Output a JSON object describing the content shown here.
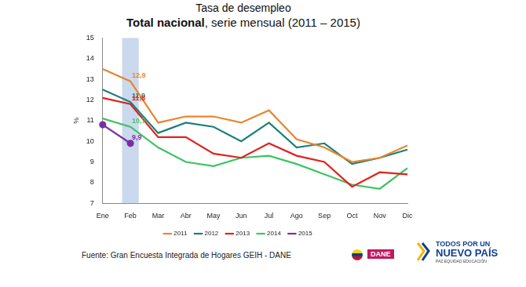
{
  "chart_data": {
    "type": "line",
    "title": "Tasa de desempleo",
    "subtitle": "Total nacional, serie mensual (2011 – 2015)",
    "y_label": "%",
    "categories": [
      "Ene",
      "Feb",
      "Mar",
      "Abr",
      "May",
      "Jun",
      "Jul",
      "Ago",
      "Sep",
      "Oct",
      "Nov",
      "Dic"
    ],
    "series": [
      {
        "name": "2011",
        "color": "#e8862f",
        "marker": "none",
        "line_style": "solid",
        "values": [
          13.5,
          12.9,
          10.9,
          11.2,
          11.2,
          10.9,
          11.5,
          10.1,
          9.7,
          9.0,
          9.2,
          9.8
        ],
        "value_labels": [
          null,
          "12,9",
          null,
          null,
          null,
          null,
          null,
          null,
          null,
          null,
          null,
          null
        ]
      },
      {
        "name": "2012",
        "color": "#1b8077",
        "marker": "none",
        "line_style": "solid",
        "values": [
          12.5,
          11.9,
          10.4,
          10.9,
          10.7,
          10.0,
          10.9,
          9.7,
          9.9,
          8.9,
          9.2,
          9.6
        ],
        "value_labels": [
          null,
          "11,9",
          null,
          null,
          null,
          null,
          null,
          null,
          null,
          null,
          null,
          null
        ]
      },
      {
        "name": "2013",
        "color": "#e3211c",
        "marker": "none",
        "line_style": "solid",
        "values": [
          12.1,
          11.8,
          10.2,
          10.2,
          9.4,
          9.2,
          9.9,
          9.3,
          9.0,
          7.8,
          8.5,
          8.4
        ],
        "value_labels": [
          null,
          "11,8",
          null,
          null,
          null,
          null,
          null,
          null,
          null,
          null,
          null,
          null
        ]
      },
      {
        "name": "2014",
        "color": "#3cc464",
        "marker": "none",
        "line_style": "solid",
        "values": [
          11.1,
          10.7,
          9.7,
          9.0,
          8.8,
          9.2,
          9.3,
          8.9,
          8.4,
          7.9,
          7.7,
          8.7
        ],
        "value_labels": [
          null,
          "10,7",
          null,
          null,
          null,
          null,
          null,
          null,
          null,
          null,
          null,
          null
        ]
      },
      {
        "name": "2015",
        "color": "#7b2fa0",
        "marker": "circle",
        "line_style": "solid",
        "values": [
          10.8,
          9.9,
          null,
          null,
          null,
          null,
          null,
          null,
          null,
          null,
          null,
          null
        ],
        "value_labels": [
          null,
          "9,9",
          null,
          null,
          null,
          null,
          null,
          null,
          null,
          null,
          null,
          null
        ]
      }
    ],
    "ylim": [
      7,
      15
    ],
    "yticks": [
      7,
      8,
      9,
      10,
      11,
      12,
      13,
      14,
      15
    ],
    "grid": false,
    "legend": "bottom",
    "data_labels": true
  },
  "footer": {
    "source": "Fuente: Gran Encuesta Integrada de Hogares GEIH - DANE",
    "logo": "DANE",
    "brand_line1": "TODOS POR UN",
    "brand_line2": "NUEVO PAÍS",
    "brand_line3": "PAZ EQUIDAD EDUCACIÓN"
  }
}
